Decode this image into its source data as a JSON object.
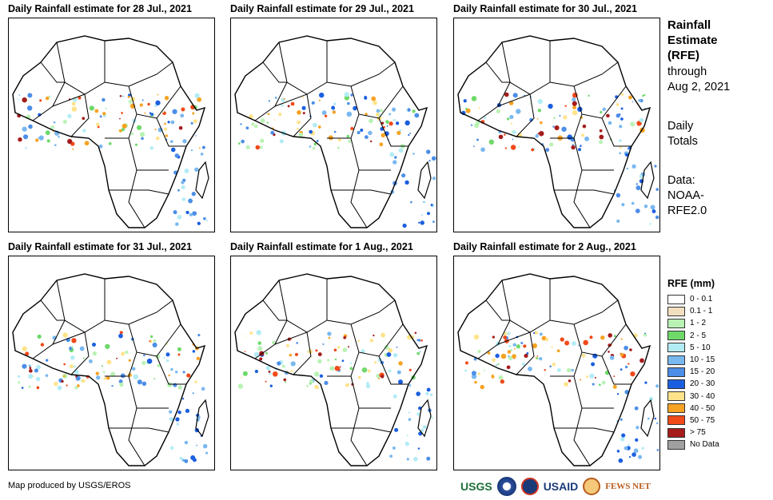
{
  "panels": [
    {
      "title": "Daily Rainfall estimate for 28 Jul., 2021"
    },
    {
      "title": "Daily Rainfall estimate for 29 Jul., 2021"
    },
    {
      "title": "Daily Rainfall estimate for 30 Jul., 2021"
    },
    {
      "title": "Daily Rainfall estimate for 31 Jul., 2021"
    },
    {
      "title": "Daily Rainfall estimate for 1 Aug., 2021"
    },
    {
      "title": "Daily Rainfall estimate for 2 Aug., 2021"
    }
  ],
  "side": {
    "title_line1": "Rainfall",
    "title_line2": "Estimate",
    "title_line3": "(RFE)",
    "through_line1": "through",
    "through_line2": "Aug 2, 2021",
    "totals_line1": "Daily",
    "totals_line2": "Totals",
    "data_line1": "Data:",
    "data_line2": "NOAA-",
    "data_line3": "RFE2.0"
  },
  "legend": {
    "title": "RFE (mm)",
    "items": [
      {
        "label": "0 - 0.1",
        "color": "#ffffff"
      },
      {
        "label": "0.1 - 1",
        "color": "#f2dfbf"
      },
      {
        "label": "1 - 2",
        "color": "#b9f2b4"
      },
      {
        "label": "2 - 5",
        "color": "#6fd96a"
      },
      {
        "label": "5 - 10",
        "color": "#b2ecf5"
      },
      {
        "label": "10 - 15",
        "color": "#7ab8f0"
      },
      {
        "label": "15 - 20",
        "color": "#4c8ee8"
      },
      {
        "label": "20 - 30",
        "color": "#1b5fe0"
      },
      {
        "label": "30 - 40",
        "color": "#ffe38a"
      },
      {
        "label": "40 - 50",
        "color": "#f6a323"
      },
      {
        "label": "50 - 75",
        "color": "#f04a1a"
      },
      {
        "label": "> 75",
        "color": "#a51c1c"
      },
      {
        "label": "No Data",
        "color": "#a0a0a0"
      }
    ]
  },
  "credit": "Map produced by USGS/EROS",
  "logos": {
    "usgs": "USGS",
    "usaid": "USAID",
    "fews": "FEWS NET"
  },
  "icons": [
    "usgs-logo-icon",
    "noaa-logo-icon",
    "usaid-logo-icon",
    "fewsnet-logo-icon"
  ]
}
